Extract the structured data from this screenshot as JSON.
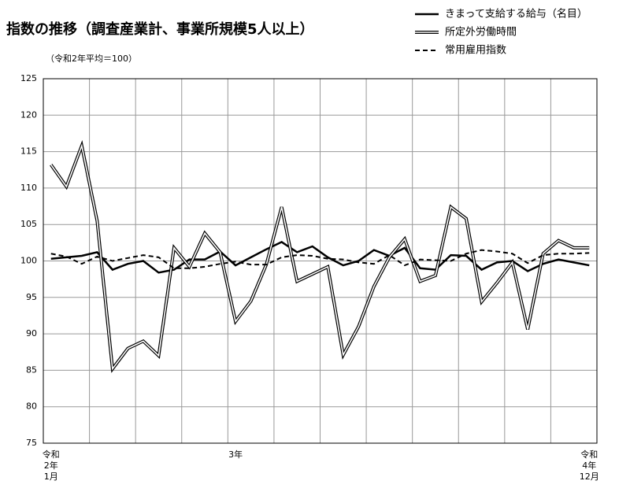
{
  "chart_data": {
    "type": "line",
    "title": "指数の推移（調査産業計、事業所規模5人以上）",
    "subtitle": "（令和2年平均＝100）",
    "categories": [
      "令和\n2年\n1月",
      null,
      null,
      null,
      null,
      null,
      null,
      null,
      null,
      null,
      null,
      null,
      "3年",
      null,
      null,
      null,
      null,
      null,
      null,
      null,
      null,
      null,
      null,
      null,
      null,
      null,
      null,
      null,
      null,
      null,
      null,
      null,
      null,
      null,
      null,
      "令和\n4年\n12月"
    ],
    "series": [
      {
        "name": "きまって支給する給与（名目）",
        "color": "#000000",
        "style": "solid",
        "values": [
          100.3,
          100.5,
          100.7,
          101.2,
          98.8,
          99.6,
          100.0,
          98.4,
          98.8,
          100.2,
          100.2,
          101.3,
          99.4,
          100.5,
          101.6,
          102.6,
          101.2,
          102.0,
          100.5,
          99.4,
          100.0,
          101.5,
          100.7,
          101.8,
          99.0,
          98.8,
          100.8,
          100.7,
          98.8,
          99.8,
          100.0,
          98.6,
          99.6,
          100.2,
          99.8,
          99.4
        ]
      },
      {
        "name": "所定外労働時間",
        "color": "#000000",
        "style": "double",
        "values": [
          113.2,
          110.2,
          115.8,
          105.5,
          85.2,
          88.0,
          89.0,
          87.0,
          101.8,
          99.2,
          103.8,
          101.2,
          91.7,
          94.5,
          99.5,
          107.4,
          97.2,
          98.2,
          99.2,
          87.1,
          91.0,
          96.5,
          100.5,
          103.0,
          97.2,
          98.0,
          107.4,
          105.8,
          94.4,
          97.0,
          99.8,
          90.6,
          101.0,
          102.8,
          101.8,
          101.8
        ]
      },
      {
        "name": "常用雇用指数",
        "color": "#000000",
        "style": "dashed",
        "values": [
          101.0,
          100.6,
          99.6,
          100.6,
          100.0,
          100.4,
          100.8,
          100.5,
          99.0,
          99.0,
          99.2,
          99.6,
          99.9,
          99.5,
          99.5,
          100.5,
          100.8,
          100.7,
          100.3,
          100.2,
          99.8,
          99.6,
          100.8,
          99.4,
          100.2,
          100.1,
          100.0,
          101.0,
          101.5,
          101.3,
          101.0,
          99.7,
          100.8,
          101.0,
          101.0,
          101.1
        ]
      }
    ],
    "ylim": [
      75,
      125
    ],
    "yticks": [
      75,
      80,
      85,
      90,
      95,
      100,
      105,
      110,
      115,
      120,
      125
    ],
    "grid": true,
    "legend": "top-right"
  }
}
